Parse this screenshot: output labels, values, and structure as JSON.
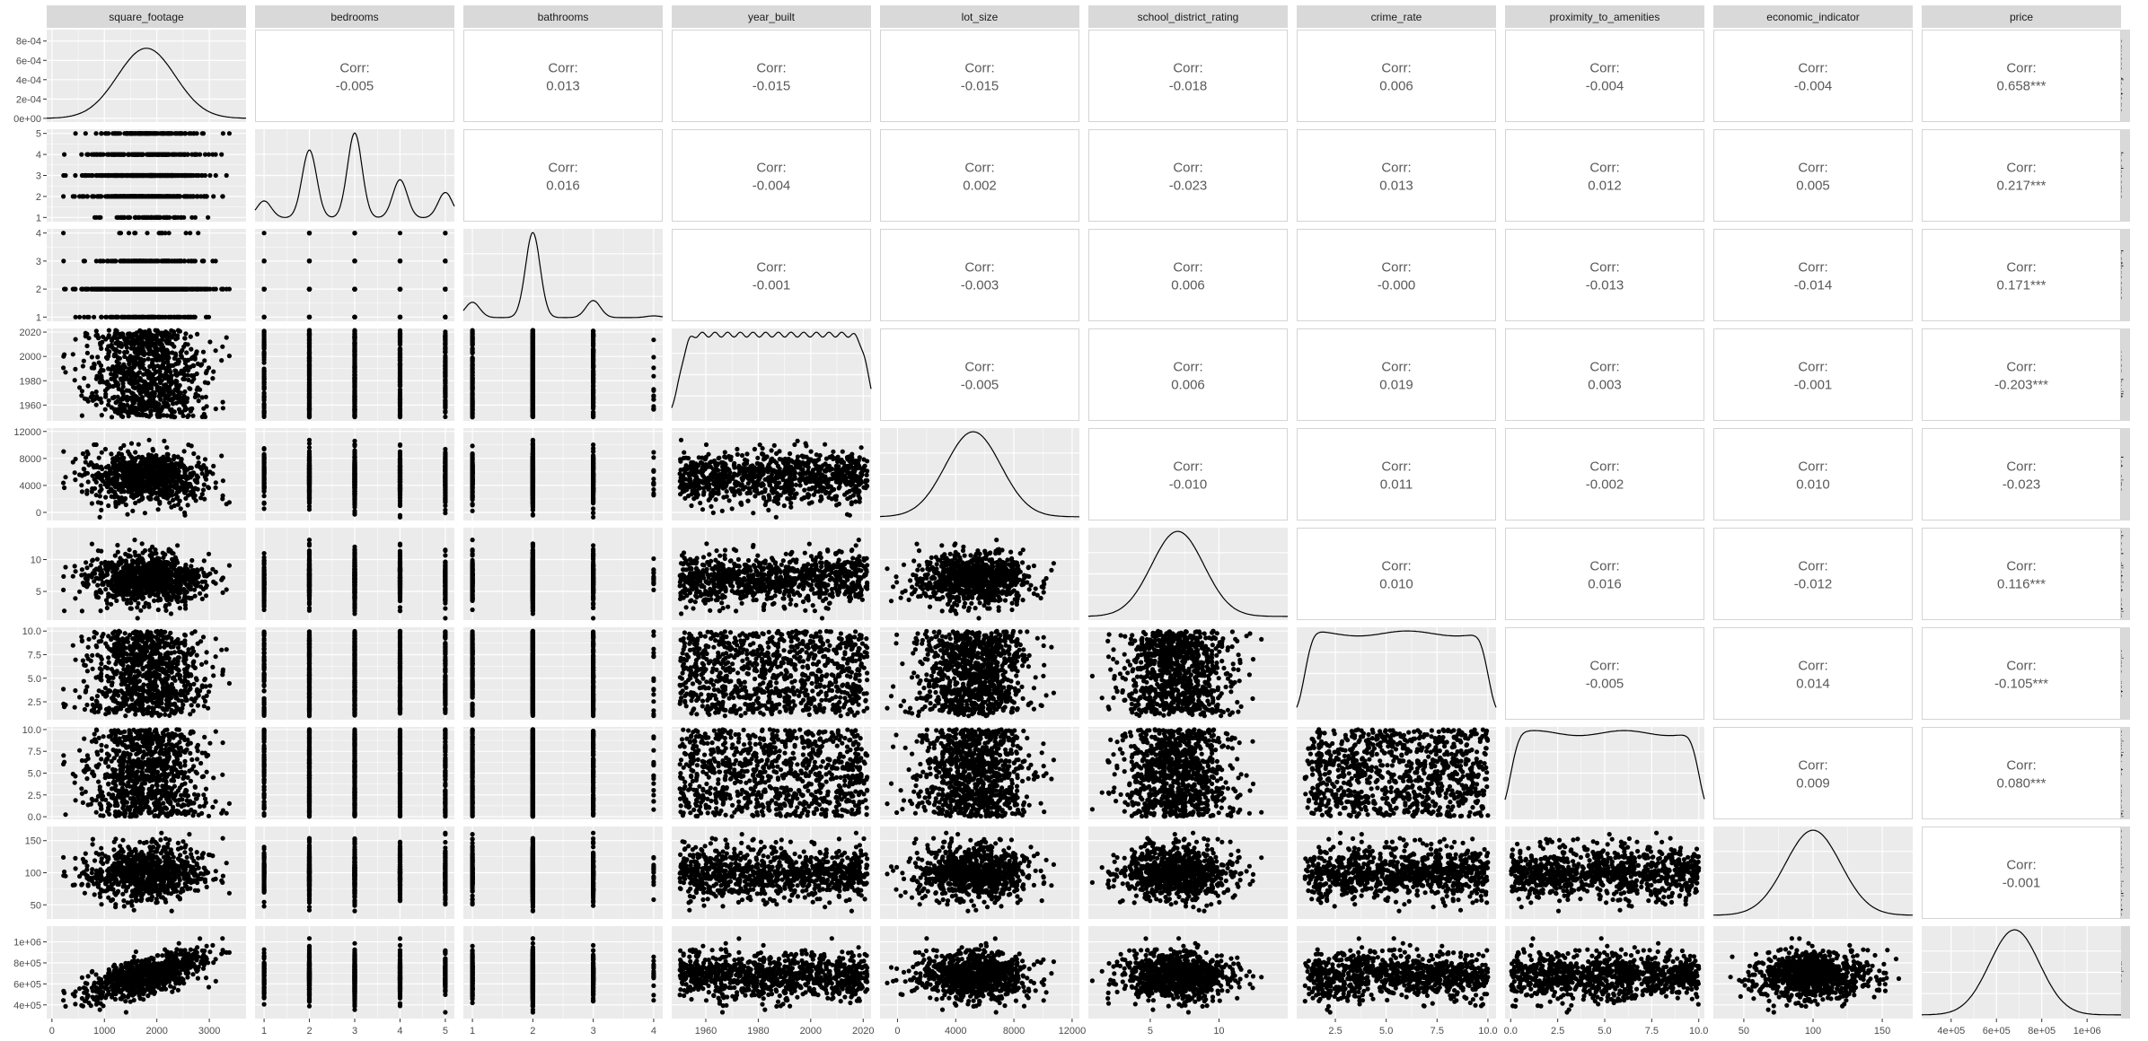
{
  "chart_data": {
    "type": "scatter-matrix",
    "title": "",
    "variables": [
      "square_footage",
      "bedrooms",
      "bathrooms",
      "year_built",
      "lot_size",
      "school_district_rating",
      "crime_rate",
      "proximity_to_amenities",
      "economic_indicator",
      "price"
    ],
    "row_strip_labels": [
      "square_footage",
      "bedrooms",
      "bathrooms",
      "year_built",
      "lot_size",
      "chool_district_ratin",
      "crime_rate",
      "oximity_to_ameniti",
      "economic_indicato",
      "price"
    ],
    "corr_label": "Corr:",
    "correlations": [
      [
        "",
        "-0.005",
        "0.013",
        "-0.015",
        "-0.015",
        "-0.018",
        "0.006",
        "-0.004",
        "-0.004",
        "0.658***"
      ],
      [
        "",
        "",
        "0.016",
        "-0.004",
        "0.002",
        "-0.023",
        "0.013",
        "0.012",
        "0.005",
        "0.217***"
      ],
      [
        "",
        "",
        "",
        "-0.001",
        "-0.003",
        "0.006",
        "-0.000",
        "-0.013",
        "-0.014",
        "0.171***"
      ],
      [
        "",
        "",
        "",
        "",
        "-0.005",
        "0.006",
        "0.019",
        "0.003",
        "-0.001",
        "-0.203***"
      ],
      [
        "",
        "",
        "",
        "",
        "",
        "-0.010",
        "0.011",
        "-0.002",
        "0.010",
        "-0.023"
      ],
      [
        "",
        "",
        "",
        "",
        "",
        "",
        "0.010",
        "0.016",
        "-0.012",
        "0.116***"
      ],
      [
        "",
        "",
        "",
        "",
        "",
        "",
        "",
        "-0.005",
        "0.014",
        "-0.105***"
      ],
      [
        "",
        "",
        "",
        "",
        "",
        "",
        "",
        "",
        "0.009",
        "0.080***"
      ],
      [
        "",
        "",
        "",
        "",
        "",
        "",
        "",
        "",
        "",
        "-0.001"
      ],
      [
        "",
        "",
        "",
        "",
        "",
        "",
        "",
        "",
        "",
        ""
      ]
    ],
    "ranges": {
      "square_footage": [
        -100,
        3700
      ],
      "bedrooms": [
        0.8,
        5.2
      ],
      "bathrooms": [
        0.85,
        4.15
      ],
      "year_built": [
        1947,
        2023
      ],
      "lot_size": [
        -1200,
        12500
      ],
      "school_district_rating": [
        0.5,
        15
      ],
      "crime_rate": [
        0.6,
        10.4
      ],
      "proximity_to_amenities": [
        -0.3,
        10.3
      ],
      "economic_indicator": [
        28,
        172
      ],
      "price": [
        270000,
        1150000
      ]
    },
    "distributions": {
      "square_footage": {
        "kind": "normal",
        "mean": 1800,
        "sd": 550
      },
      "bedrooms": {
        "kind": "discrete",
        "values": [
          1,
          2,
          3,
          4,
          5
        ],
        "weights": [
          0.2,
          0.8,
          1.0,
          0.45,
          0.3
        ]
      },
      "bathrooms": {
        "kind": "discrete",
        "values": [
          1,
          2,
          3,
          4
        ],
        "weights": [
          0.18,
          1.0,
          0.2,
          0.02
        ]
      },
      "year_built": {
        "kind": "uniform",
        "min": 1950,
        "max": 2022
      },
      "lot_size": {
        "kind": "normal",
        "mean": 5200,
        "sd": 1900
      },
      "school_district_rating": {
        "kind": "normal",
        "mean": 7,
        "sd": 1.9
      },
      "crime_rate": {
        "kind": "uniform",
        "min": 1,
        "max": 10
      },
      "proximity_to_amenities": {
        "kind": "uniform",
        "min": 0,
        "max": 10
      },
      "economic_indicator": {
        "kind": "normal",
        "mean": 100,
        "sd": 20
      },
      "price": {
        "kind": "normal",
        "mean": 680000,
        "sd": 110000
      }
    },
    "price_link": {
      "square_footage": 0.658
    },
    "density_ticks": {
      "square_footage": {
        "values": [
          0,
          0.0002,
          0.0004,
          0.0006,
          0.0008
        ],
        "labels": [
          "0e+00",
          "2e-04",
          "4e-04",
          "6e-04",
          "8e-04"
        ],
        "max": 0.00088
      }
    },
    "y_ticks": {
      "bedrooms": {
        "values": [
          1,
          2,
          3,
          4,
          5
        ],
        "labels": [
          "1",
          "2",
          "3",
          "4",
          "5"
        ]
      },
      "bathrooms": {
        "values": [
          1,
          2,
          3,
          4
        ],
        "labels": [
          "1",
          "2",
          "3",
          "4"
        ]
      },
      "year_built": {
        "values": [
          1960,
          1980,
          2000,
          2020
        ],
        "labels": [
          "1960",
          "1980",
          "2000",
          "2020"
        ]
      },
      "lot_size": {
        "values": [
          0,
          4000,
          8000,
          12000
        ],
        "labels": [
          "0",
          "4000",
          "8000",
          "12000"
        ]
      },
      "school_district_rating": {
        "values": [
          5,
          10
        ],
        "labels": [
          "5",
          "10"
        ]
      },
      "crime_rate": {
        "values": [
          2.5,
          5,
          7.5,
          10
        ],
        "labels": [
          "2.5",
          "5.0",
          "7.5",
          "10.0"
        ]
      },
      "proximity_to_amenities": {
        "values": [
          0,
          2.5,
          5,
          7.5,
          10
        ],
        "labels": [
          "0.0",
          "2.5",
          "5.0",
          "7.5",
          "10.0"
        ]
      },
      "economic_indicator": {
        "values": [
          50,
          100,
          150
        ],
        "labels": [
          "50",
          "100",
          "150"
        ]
      },
      "price": {
        "values": [
          400000,
          600000,
          800000,
          1000000
        ],
        "labels": [
          "4e+05",
          "6e+05",
          "8e+05",
          "1e+06"
        ]
      }
    },
    "x_ticks": {
      "square_footage": {
        "values": [
          0,
          1000,
          2000,
          3000
        ],
        "labels": [
          "0",
          "1000",
          "2000",
          "3000"
        ]
      },
      "bedrooms": {
        "values": [
          1,
          2,
          3,
          4,
          5
        ],
        "labels": [
          "1",
          "2",
          "3",
          "4",
          "5"
        ]
      },
      "bathrooms": {
        "values": [
          1,
          2,
          3,
          4
        ],
        "labels": [
          "1",
          "2",
          "3",
          "4"
        ]
      },
      "year_built": {
        "values": [
          1960,
          1980,
          2000,
          2020
        ],
        "labels": [
          "1960",
          "1980",
          "2000",
          "2020"
        ]
      },
      "lot_size": {
        "values": [
          0,
          4000,
          8000,
          12000
        ],
        "labels": [
          "0",
          "4000",
          "8000",
          "12000"
        ]
      },
      "school_district_rating": {
        "values": [
          5,
          10
        ],
        "labels": [
          "5",
          "10"
        ]
      },
      "crime_rate": {
        "values": [
          2.5,
          5,
          7.5,
          10
        ],
        "labels": [
          "2.5",
          "5.0",
          "7.5",
          "10.0"
        ]
      },
      "proximity_to_amenities": {
        "values": [
          0,
          2.5,
          5,
          7.5,
          10
        ],
        "labels": [
          "0.0",
          "2.5",
          "5.0",
          "7.5",
          "10.0"
        ]
      },
      "economic_indicator": {
        "values": [
          50,
          100,
          150
        ],
        "labels": [
          "50",
          "100",
          "150"
        ]
      },
      "price": {
        "values": [
          400000,
          600000,
          800000,
          1000000
        ],
        "labels": [
          "4e+05",
          "6e+05",
          "8e+05",
          "1e+06"
        ]
      }
    },
    "legend": "none",
    "grid": true,
    "colors": {
      "panel_bg": "#ebebeb",
      "grid": "#ffffff",
      "strip_bg": "#d9d9d9",
      "strip_text": "#1a1a1a",
      "tick_text": "#4d4d4d",
      "corr_text": "#595959",
      "point": "#000000",
      "line": "#000000"
    }
  }
}
